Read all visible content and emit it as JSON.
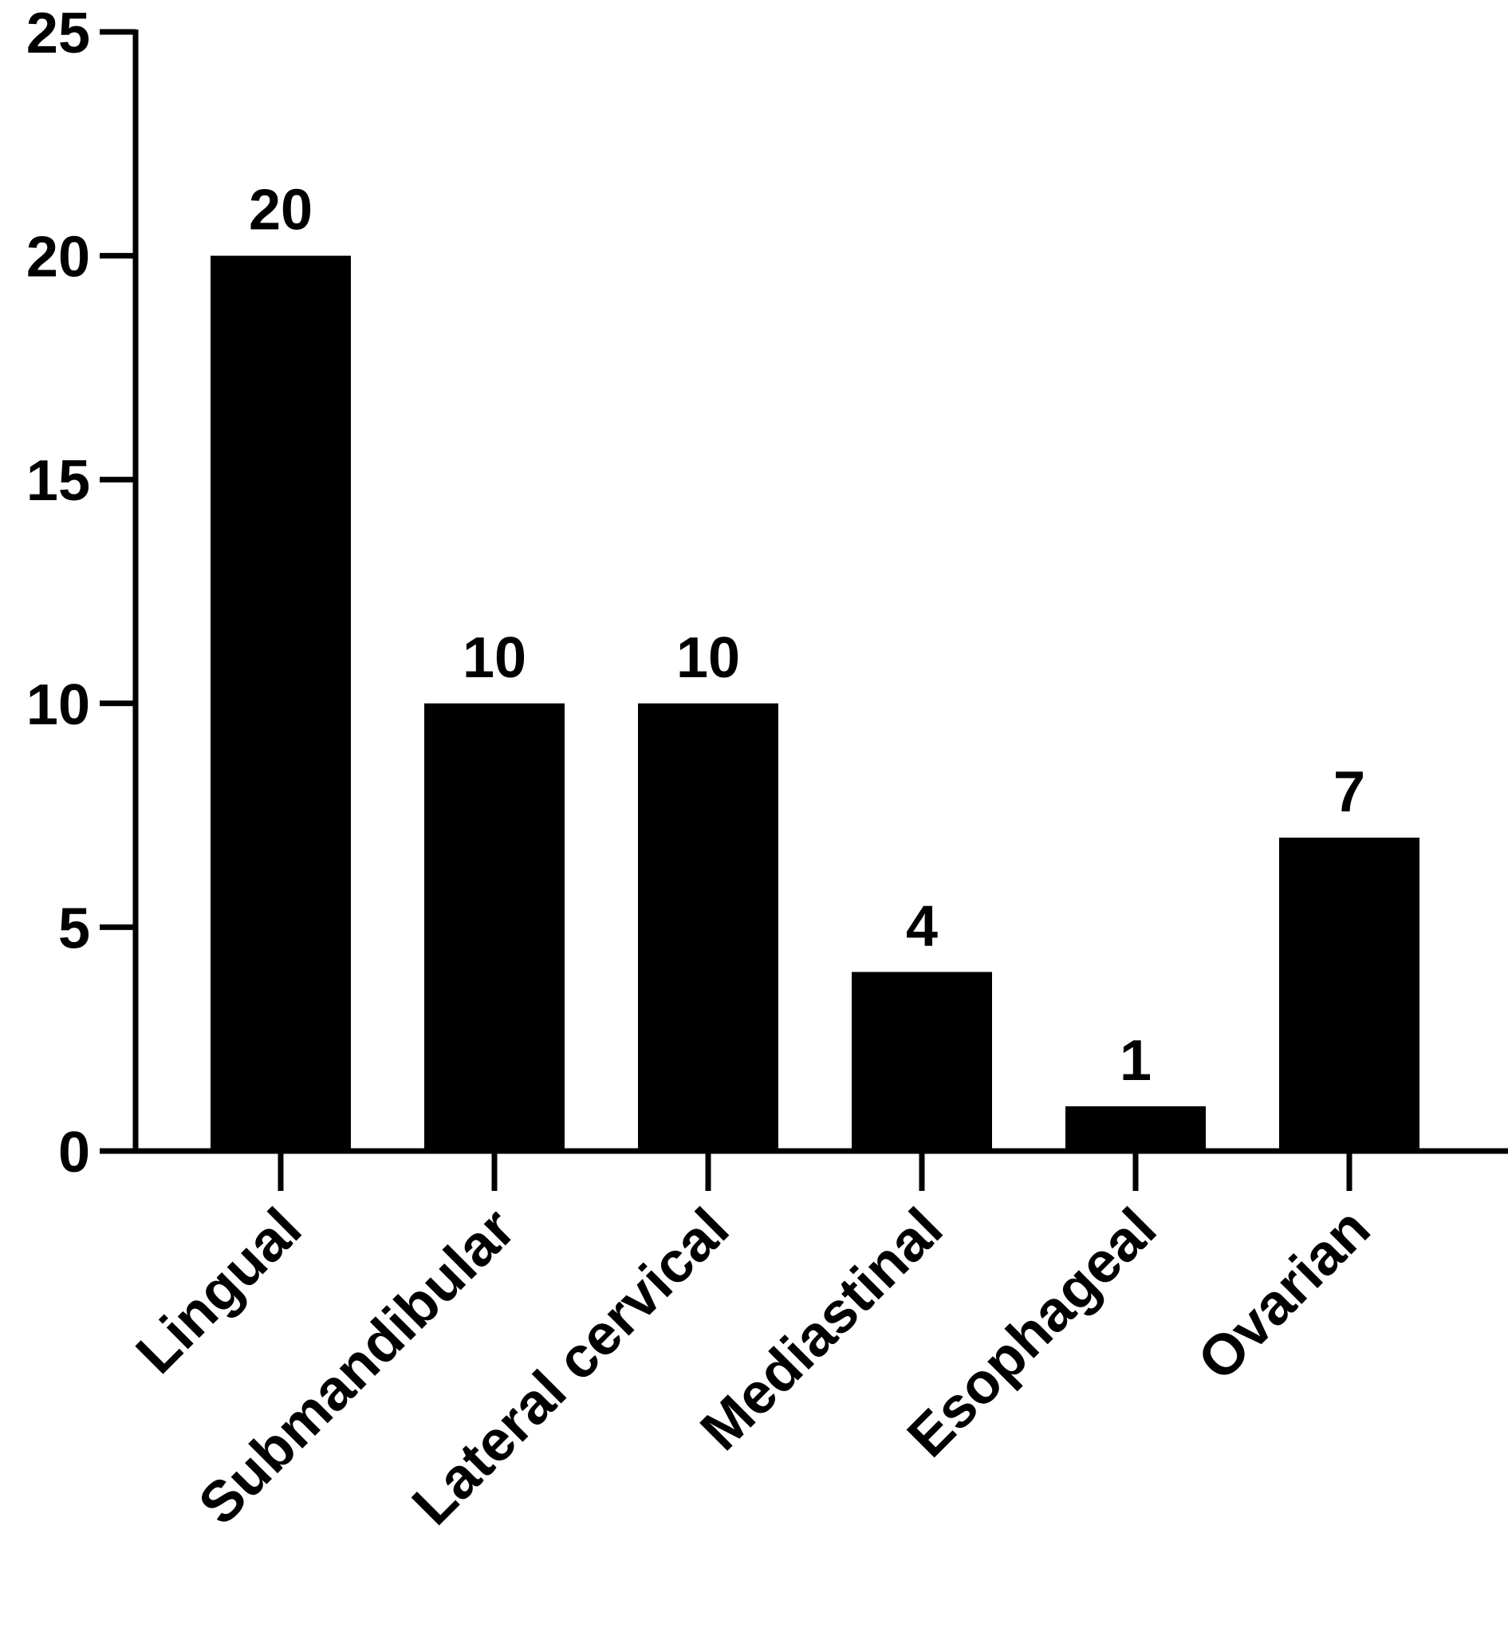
{
  "chart_data": {
    "type": "bar",
    "title": "",
    "xlabel": "",
    "ylabel": "",
    "categories": [
      "Lingual",
      "Submandibular",
      "Lateral cervical",
      "Mediastinal",
      "Esophageal",
      "Ovarian"
    ],
    "values": [
      20,
      10,
      10,
      4,
      1,
      7
    ],
    "data_labels": [
      "20",
      "10",
      "10",
      "4",
      "1",
      "7"
    ],
    "ylim": [
      0,
      25
    ],
    "yticks": [
      0,
      5,
      10,
      15,
      20,
      25
    ],
    "ytick_labels": [
      "0",
      "5",
      "10",
      "15",
      "20",
      "25"
    ],
    "grid": false,
    "legend": "none",
    "bar_color": "#000000",
    "axis_color": "#000000"
  }
}
